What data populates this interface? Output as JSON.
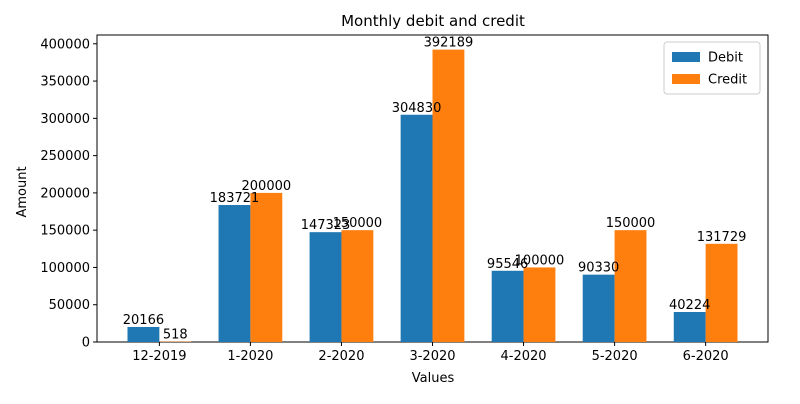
{
  "chart_data": {
    "type": "bar",
    "title": "Monthly debit and credit",
    "xlabel": "Values",
    "ylabel": "Amount",
    "categories": [
      "12-2019",
      "1-2020",
      "2-2020",
      "3-2020",
      "4-2020",
      "5-2020",
      "6-2020"
    ],
    "series": [
      {
        "name": "Debit",
        "color": "#1f77b4",
        "values": [
          20166,
          183721,
          147323,
          304830,
          95546,
          90330,
          40224
        ]
      },
      {
        "name": "Credit",
        "color": "#ff7f0e",
        "values": [
          518,
          200000,
          150000,
          392189,
          100000,
          150000,
          131729
        ]
      }
    ],
    "ylim": [
      0,
      411798
    ],
    "yticks": [
      0,
      50000,
      100000,
      150000,
      200000,
      250000,
      300000,
      350000,
      400000
    ],
    "grid": false,
    "legend_position": "top-right",
    "data_labels": true
  }
}
